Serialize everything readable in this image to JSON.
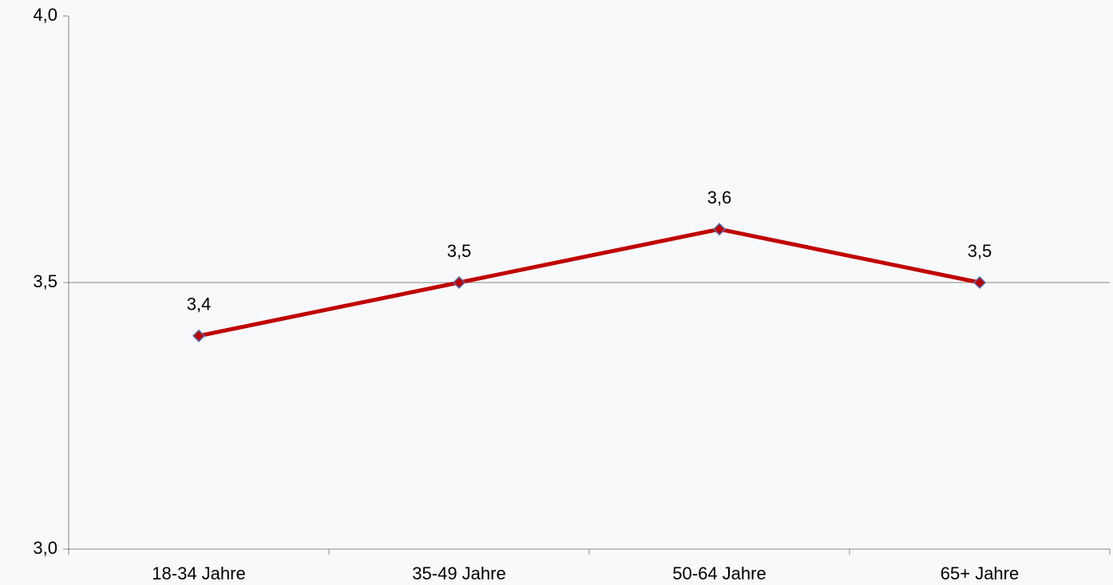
{
  "chart_data": {
    "type": "line",
    "categories": [
      "18-34 Jahre",
      "35-49 Jahre",
      "50-64 Jahre",
      "65+ Jahre"
    ],
    "series": [
      {
        "color": "#c00000",
        "values": [
          3.4,
          3.5,
          3.6,
          3.5
        ],
        "value_labels": [
          "3,4",
          "3,5",
          "3,6",
          "3,5"
        ]
      }
    ],
    "ylim": [
      3,
      4
    ],
    "yticks": [
      {
        "value": 3,
        "label": "3,0"
      },
      {
        "value": 3.5,
        "label": "3,5"
      },
      {
        "value": 4,
        "label": "4,0"
      }
    ],
    "grid": true
  }
}
